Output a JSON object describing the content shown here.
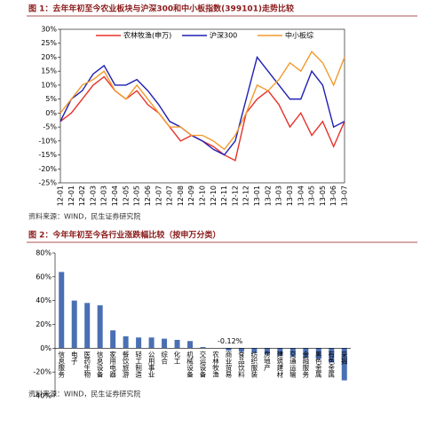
{
  "captions": [
    "图 1：去年年初至今农业板块与沪深300和中小板指数(399101)走势比较",
    "图 2：今年年初至今各行业涨跌幅比较（按申万分类）"
  ],
  "sources": [
    "资料来源：WIND，民生证券研究院",
    "资料来源：WIND，民生证券研究院"
  ],
  "chart_data": [
    {
      "type": "line",
      "categories": [
        "12-01",
        "12-01",
        "12-02",
        "12-03",
        "12-03",
        "12-04",
        "12-05",
        "12-05",
        "12-06",
        "12-07",
        "12-07",
        "12-08",
        "12-09",
        "12-10",
        "12-10",
        "12-11",
        "12-12",
        "12-12",
        "13-01",
        "13-02",
        "13-03",
        "13-03",
        "13-04",
        "13-05",
        "13-05",
        "13-06",
        "13-07"
      ],
      "series": [
        {
          "name": "农林牧渔(申万)",
          "color": "#e8312a",
          "values": [
            -3,
            0,
            5,
            10,
            13,
            8,
            5,
            8,
            3,
            0,
            -5,
            -10,
            -8,
            -10,
            -12,
            -15,
            -17,
            0,
            5,
            8,
            3,
            -5,
            0,
            -8,
            -3,
            -12,
            -3
          ]
        },
        {
          "name": "沪深300",
          "color": "#1f1fb4",
          "values": [
            -3,
            5,
            8,
            14,
            17,
            10,
            10,
            12,
            8,
            3,
            -3,
            -5,
            -8,
            -10,
            -13,
            -15,
            -10,
            5,
            20,
            15,
            10,
            5,
            5,
            15,
            10,
            -5,
            -3
          ]
        },
        {
          "name": "中小板综",
          "color": "#f39a2b",
          "values": [
            0,
            5,
            10,
            12,
            15,
            8,
            5,
            10,
            5,
            0,
            -5,
            -5,
            -8,
            -8,
            -10,
            -13,
            -8,
            0,
            10,
            8,
            12,
            18,
            15,
            22,
            18,
            10,
            20
          ]
        }
      ],
      "ylim": [
        -25,
        30
      ],
      "yticks": [
        {
          "value": -25,
          "label": "-25%"
        },
        {
          "value": -20,
          "label": "-20%"
        },
        {
          "value": -15,
          "label": "-15%"
        },
        {
          "value": -10,
          "label": "-10%"
        },
        {
          "value": -5,
          "label": "-5%"
        },
        {
          "value": 0,
          "label": "0%"
        },
        {
          "value": 5,
          "label": "5%"
        },
        {
          "value": 10,
          "label": "10%"
        },
        {
          "value": 15,
          "label": "15%"
        },
        {
          "value": 20,
          "label": "20%"
        },
        {
          "value": 25,
          "label": "25%"
        },
        {
          "value": 30,
          "label": "30%"
        }
      ]
    },
    {
      "type": "bar",
      "color": "#4a6fb3",
      "categories": [
        "信息服务",
        "电子",
        "医药生物",
        "信息设备",
        "家用电器",
        "餐饮旅游",
        "轻工制造",
        "公用事业",
        "综合",
        "化工",
        "机械设备",
        "交运设备",
        "农林牧渔",
        "商业贸易",
        "食品饮料",
        "纺织服装",
        "房地产",
        "建筑建材",
        "交通运输",
        "金融服务",
        "黑色金属",
        "有色金属",
        "采掘"
      ],
      "values": [
        64,
        40,
        38,
        36,
        15,
        10,
        9,
        9,
        8,
        7,
        6,
        1,
        -0.12,
        -2,
        -3,
        -4,
        -5,
        -6,
        -7,
        -8,
        -9,
        -12,
        -27
      ],
      "value_labels": [
        null,
        null,
        null,
        null,
        null,
        null,
        null,
        null,
        null,
        null,
        null,
        null,
        "-0.12%",
        null,
        null,
        null,
        null,
        null,
        null,
        null,
        null,
        null,
        null
      ],
      "ylim": [
        -40,
        80
      ],
      "yticks": [
        {
          "value": -40,
          "label": "-40%"
        },
        {
          "value": -20,
          "label": "-20%"
        },
        {
          "value": 0,
          "label": "0%"
        },
        {
          "value": 20,
          "label": "20%"
        },
        {
          "value": 40,
          "label": "40%"
        },
        {
          "value": 60,
          "label": "60%"
        },
        {
          "value": 80,
          "label": "80%"
        }
      ]
    }
  ]
}
